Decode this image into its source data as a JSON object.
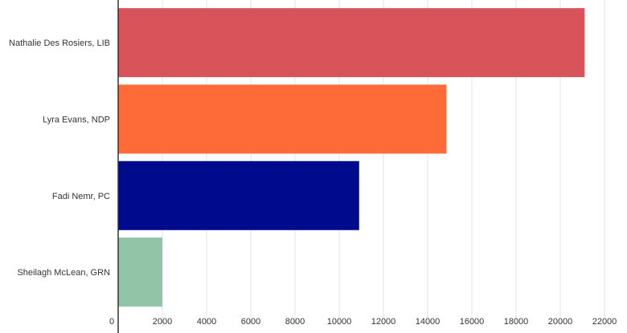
{
  "chart_data": {
    "type": "bar",
    "orientation": "horizontal",
    "title": "",
    "xlabel": "",
    "ylabel": "",
    "categories": [
      "Nathalie Des Rosiers, LIB",
      "Lyra Evans, NDP",
      "Fadi Nemr, PC",
      "Sheilagh McLean, GRN"
    ],
    "values": [
      21100,
      14850,
      10900,
      2000
    ],
    "colors": [
      "#d9535a",
      "#fe6b38",
      "#000a8c",
      "#92c5a8"
    ],
    "xlim": [
      0,
      22000
    ],
    "xticks": [
      0,
      2000,
      4000,
      6000,
      8000,
      10000,
      12000,
      14000,
      16000,
      18000,
      20000,
      22000
    ],
    "grid": "vertical",
    "legend": "none"
  }
}
